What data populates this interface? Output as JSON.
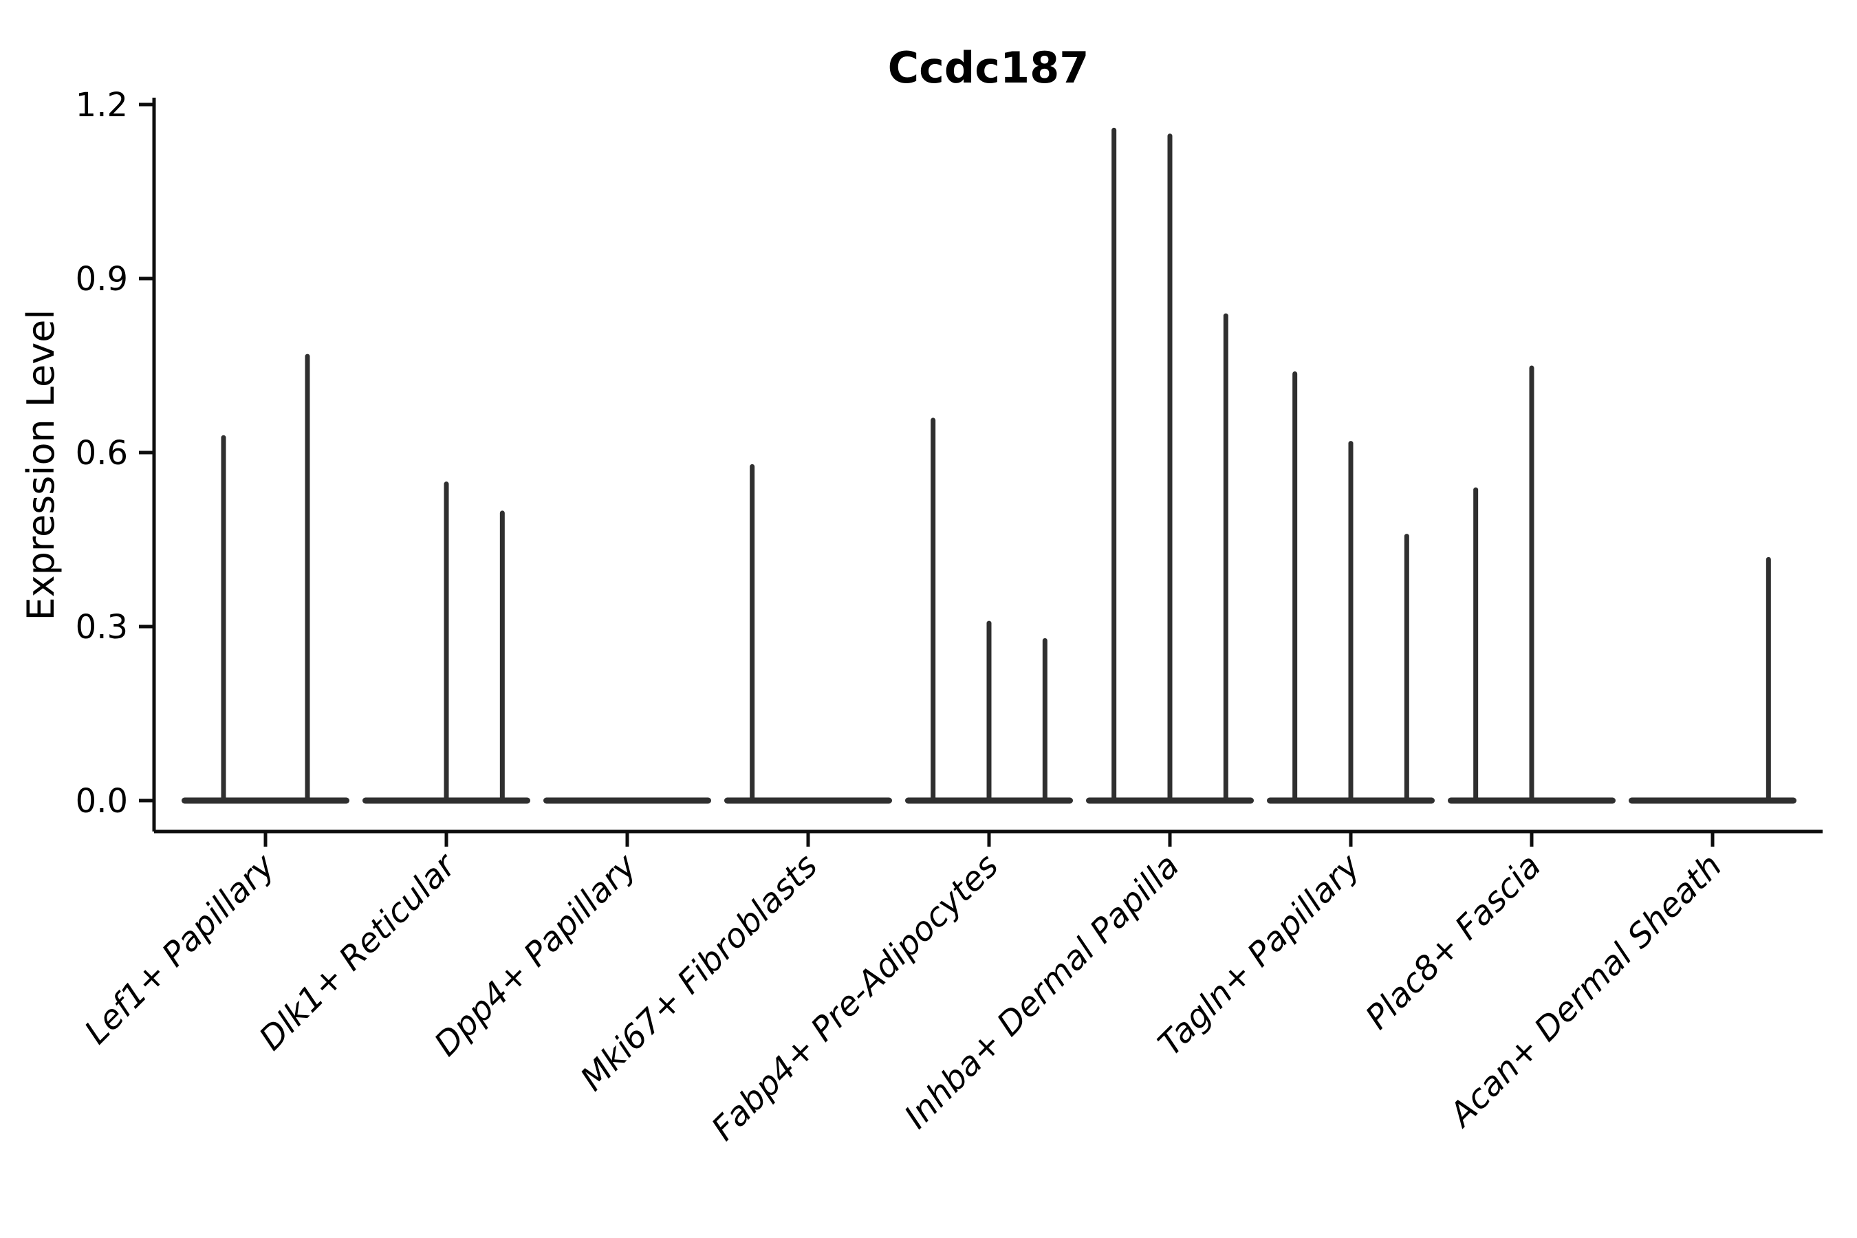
{
  "title": "Ccdc187",
  "axes": {
    "y_label": "Expression Level",
    "y_tick_labels": [
      "0.0",
      "0.3",
      "0.6",
      "0.9",
      "1.2"
    ]
  },
  "chart_data": {
    "type": "violin",
    "title": "Ccdc187",
    "xlabel": "",
    "ylabel": "Expression Level",
    "ylim": [
      -0.05,
      1.22
    ],
    "y_ticks": [
      0.0,
      0.3,
      0.6,
      0.9,
      1.2
    ],
    "grid": false,
    "legend": "none",
    "description": "Stacked-by-sample violin plot of Ccdc187 expression; nearly all density lies at 0 (flat bases) with thin spikes marking each sub-violin's maximum expression tail.",
    "categories": [
      "Lef1+ Papillary",
      "Dlk1+ Reticular",
      "Dpp4+ Papillary",
      "Mki67+ Fibroblasts",
      "Fabp4+ Pre-Adipocytes",
      "Inhba+ Dermal Papilla",
      "Tagln+ Papillary",
      "Plac8+ Fascia",
      "Acan+ Dermal Sheath"
    ],
    "groups": [
      {
        "label": "Lef1+ Papillary",
        "n_violins": 2,
        "baseline": 0.0,
        "spikes": [
          {
            "slot": 0,
            "peak": 0.63
          },
          {
            "slot": 1,
            "peak": 0.77
          }
        ]
      },
      {
        "label": "Dlk1+ Reticular",
        "n_violins": 3,
        "baseline": 0.0,
        "spikes": [
          {
            "slot": 1,
            "peak": 0.55
          },
          {
            "slot": 2,
            "peak": 0.5
          }
        ]
      },
      {
        "label": "Dpp4+ Papillary",
        "n_violins": 3,
        "baseline": 0.0,
        "spikes": []
      },
      {
        "label": "Mki67+ Fibroblasts",
        "n_violins": 3,
        "baseline": 0.0,
        "spikes": [
          {
            "slot": 0,
            "peak": 0.58
          }
        ]
      },
      {
        "label": "Fabp4+ Pre-Adipocytes",
        "n_violins": 3,
        "baseline": 0.0,
        "spikes": [
          {
            "slot": 0,
            "peak": 0.66
          },
          {
            "slot": 1,
            "peak": 0.31
          },
          {
            "slot": 2,
            "peak": 0.28
          }
        ]
      },
      {
        "label": "Inhba+ Dermal Papilla",
        "n_violins": 3,
        "baseline": 0.0,
        "spikes": [
          {
            "slot": 0,
            "peak": 1.16
          },
          {
            "slot": 1,
            "peak": 1.15
          },
          {
            "slot": 2,
            "peak": 0.84
          }
        ]
      },
      {
        "label": "Tagln+ Papillary",
        "n_violins": 3,
        "baseline": 0.0,
        "spikes": [
          {
            "slot": 0,
            "peak": 0.74
          },
          {
            "slot": 1,
            "peak": 0.62
          },
          {
            "slot": 2,
            "peak": 0.46
          }
        ]
      },
      {
        "label": "Plac8+ Fascia",
        "n_violins": 3,
        "baseline": 0.0,
        "spikes": [
          {
            "slot": 0,
            "peak": 0.54
          },
          {
            "slot": 1,
            "peak": 0.75
          }
        ]
      },
      {
        "label": "Acan+ Dermal Sheath",
        "n_violins": 3,
        "baseline": 0.0,
        "spikes": [
          {
            "slot": 2,
            "peak": 0.42
          }
        ]
      }
    ],
    "colors": {
      "violin": "#2f2f2f",
      "axis": "#0d0d0d",
      "text": "#000000",
      "background": "#ffffff"
    }
  }
}
